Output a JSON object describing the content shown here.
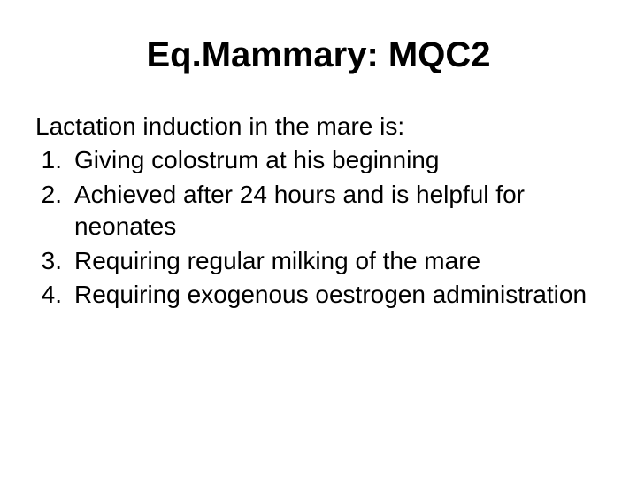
{
  "slide": {
    "title": "Eq.Mammary: MQC2",
    "stem": "Lactation induction in the mare is:",
    "options": [
      {
        "number": "1.",
        "text": "Giving colostrum at his beginning"
      },
      {
        "number": "2.",
        "text": "Achieved after 24 hours and is helpful for neonates"
      },
      {
        "number": "3.",
        "text": "Requiring regular milking of the mare"
      },
      {
        "number": "4.",
        "text": "Requiring exogenous oestrogen administration"
      }
    ]
  },
  "style": {
    "background_color": "#ffffff",
    "text_color": "#000000",
    "title_fontsize": 40,
    "body_fontsize": 28,
    "font_family": "Arial"
  }
}
